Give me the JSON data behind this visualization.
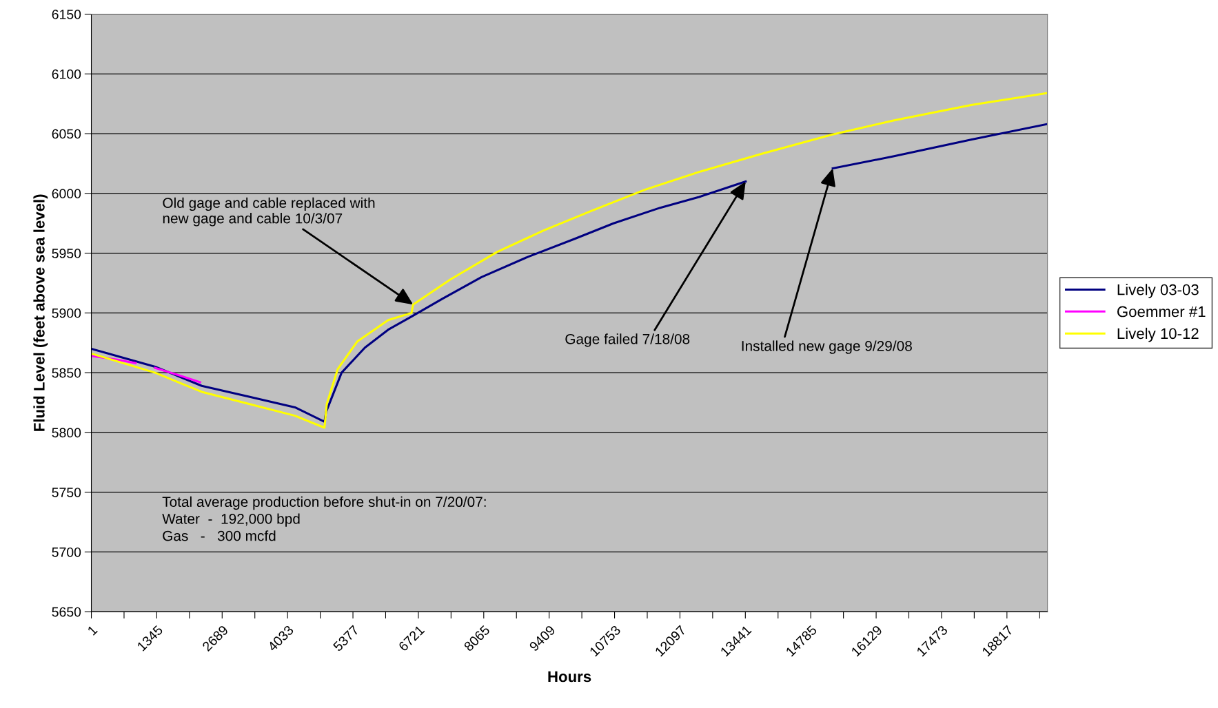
{
  "chart_data": {
    "type": "line",
    "xlabel": "Hours",
    "ylabel": "Fluid Level (feet above sea level)",
    "xlim": [
      1,
      19650
    ],
    "ylim": [
      5650,
      6150
    ],
    "xticks": [
      1,
      {
        "value": 673,
        "label": null
      },
      1345,
      {
        "value": 2017,
        "label": null
      },
      2689,
      {
        "value": 3361,
        "label": null
      },
      4033,
      {
        "value": 4705,
        "label": null
      },
      5377,
      {
        "value": 6049,
        "label": null
      },
      6721,
      {
        "value": 7393,
        "label": null
      },
      8065,
      {
        "value": 8737,
        "label": null
      },
      9409,
      {
        "value": 10081,
        "label": null
      },
      10753,
      {
        "value": 11425,
        "label": null
      },
      12097,
      {
        "value": 12769,
        "label": null
      },
      13441,
      {
        "value": 14113,
        "label": null
      },
      14785,
      {
        "value": 15457,
        "label": null
      },
      16129,
      {
        "value": 16801,
        "label": null
      },
      17473,
      {
        "value": 18145,
        "label": null
      },
      18817,
      {
        "value": 19489,
        "label": null
      }
    ],
    "yticks": [
      5650,
      5700,
      5750,
      5800,
      5850,
      5900,
      5950,
      6000,
      6050,
      6100,
      6150
    ],
    "grid": "y",
    "legend": "right",
    "marker": "none",
    "line_style": "solid",
    "series": [
      {
        "name": "Lively 03-03",
        "color": "#000080",
        "x": [
          1,
          1311,
          2269,
          3227,
          4185,
          4792,
          4824,
          5144,
          5623,
          6102,
          6581,
          7220,
          8019,
          8977,
          9935,
          10733,
          11691,
          12490,
          13448,
          14300,
          15237,
          16482,
          18079,
          19644
        ],
        "values": [
          5870,
          5855,
          5839,
          5830,
          5821,
          5809,
          5817,
          5850,
          5871,
          5886,
          5897,
          5912,
          5930,
          5947,
          5962,
          5975,
          5988,
          5997,
          6010,
          null,
          6021,
          6031,
          6045,
          6058
        ]
      },
      {
        "name": "Goemmer #1",
        "color": "#ff00ff",
        "x": [
          1,
          512,
          911,
          1000,
          1311,
          1790,
          2237
        ],
        "values": [
          5864,
          5861,
          5858,
          null,
          5854,
          5848,
          5842
        ]
      },
      {
        "name": "Lively 10-12",
        "color": "#ffff00",
        "x": [
          1,
          1311,
          2269,
          3227,
          4185,
          4792,
          4840,
          5064,
          5463,
          6102,
          6581,
          6613,
          7380,
          8338,
          9296,
          10254,
          11372,
          12490,
          13767,
          15205,
          16482,
          18079,
          19644
        ],
        "values": [
          5866,
          5850,
          5834,
          5824,
          5814,
          5804,
          5824,
          5853,
          5876,
          5894,
          5900,
          5907,
          5928,
          5951,
          5969,
          5985,
          6003,
          6018,
          6033,
          6049,
          6061,
          6074,
          6084
        ]
      }
    ],
    "annotations": [
      {
        "text": "Old gage and cable replaced with\nnew gage and cable 10/3/07",
        "x": 6613,
        "y": 5907
      },
      {
        "text": "Gage failed 7/18/08",
        "x": 13448,
        "y": 6010
      },
      {
        "text": "Installed new gage 9/29/08",
        "x": 15237,
        "y": 6021
      },
      "Total average production before shut-in on 7/20/07:\nWater  -  192,000 bpd\nGas   -   300 mcfd"
    ]
  }
}
